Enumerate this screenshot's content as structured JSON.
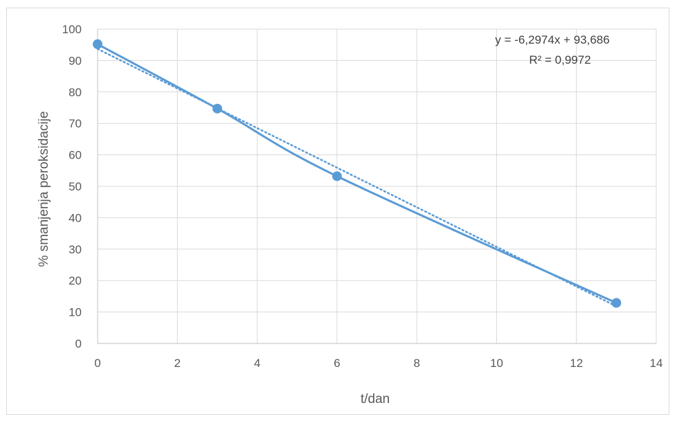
{
  "chart_data": {
    "type": "scatter",
    "title": "",
    "xlabel": "t/dan",
    "ylabel": "% smanjenja peroksidacije",
    "xlim": [
      0,
      14
    ],
    "ylim": [
      0,
      100
    ],
    "x_ticks": [
      "0",
      "2",
      "4",
      "6",
      "8",
      "10",
      "12",
      "14"
    ],
    "y_ticks": [
      "0",
      "10",
      "20",
      "30",
      "40",
      "50",
      "60",
      "70",
      "80",
      "90",
      "100"
    ],
    "grid": true,
    "legend": "none",
    "series": [
      {
        "x": [
          0,
          3,
          6,
          13
        ],
        "y": [
          95.2,
          74.7,
          53.2,
          12.9
        ],
        "style": "smooth line with markers",
        "color": "#5b9bd5"
      }
    ],
    "trendline": {
      "type": "linear",
      "slope": -6.2974,
      "intercept": 93.686,
      "style": "dotted",
      "color": "#5b9bd5",
      "equation_label": "y = -6,2974x + 93,686",
      "r2_label": "R² = 0,9972"
    }
  }
}
